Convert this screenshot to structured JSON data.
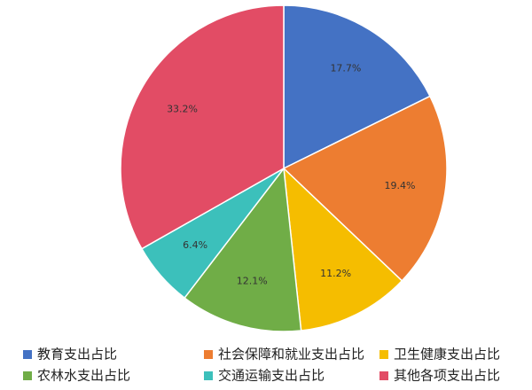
{
  "chart_data": {
    "type": "pie",
    "categories": [
      "教育支出占比",
      "社会保障和就业支出占比",
      "卫生健康支出占比",
      "农林水支出占比",
      "交通运输支出占比",
      "其他各项支出占比"
    ],
    "values": [
      17.7,
      19.4,
      11.2,
      12.1,
      6.4,
      33.2
    ],
    "value_labels": [
      "17.7%",
      "19.4%",
      "11.2%",
      "12.1%",
      "6.4%",
      "33.2%"
    ],
    "colors": [
      "#4472c4",
      "#ed7d31",
      "#f5bd00",
      "#70ad47",
      "#3cc0bb",
      "#e24c65"
    ],
    "legend": "bottom"
  }
}
